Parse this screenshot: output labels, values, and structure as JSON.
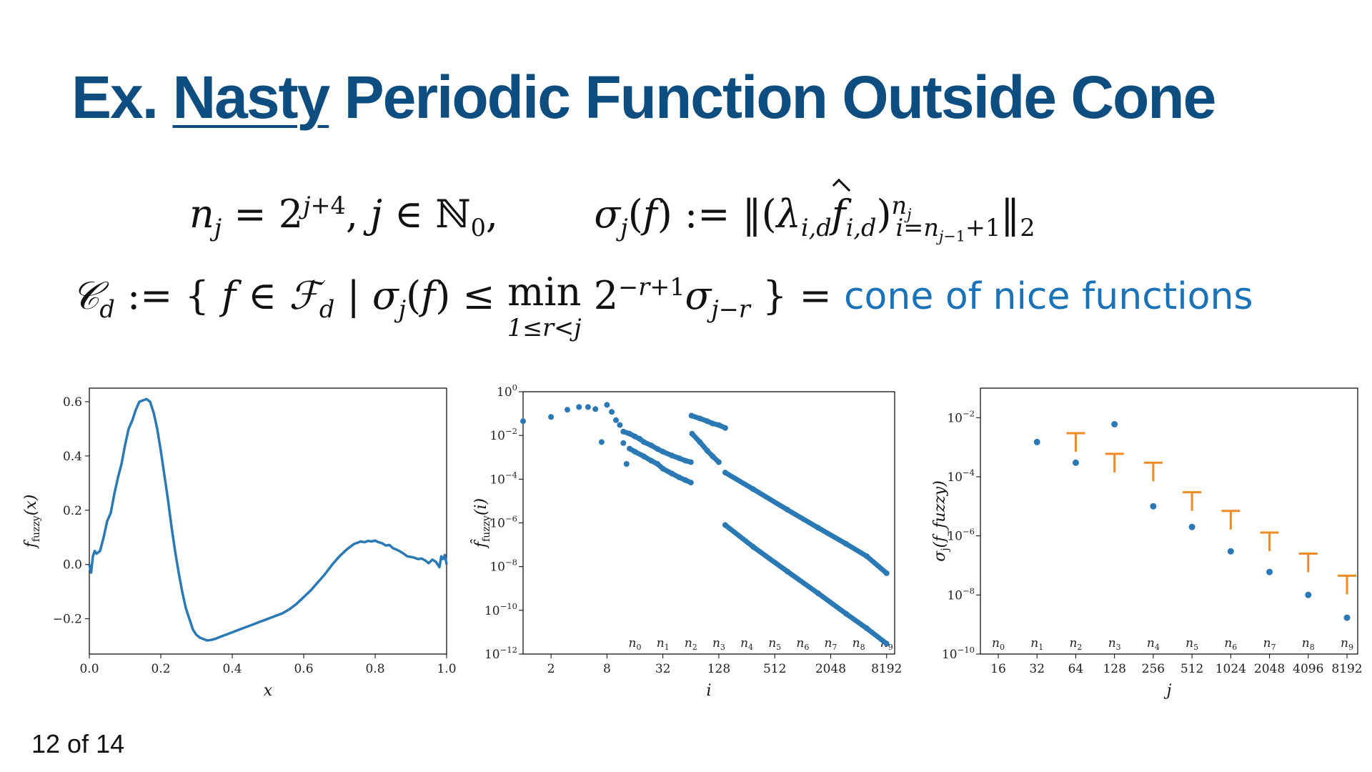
{
  "slide": {
    "title_prefix": "Ex.",
    "title_underlined": "Nasty",
    "title_suffix": "Periodic Function Outside Cone",
    "page_number": "12 of 14",
    "accent_color": "#0d4d80",
    "highlight_color": "#1a73b8",
    "series_color": "#2a78b4",
    "bound_color": "#f08a24"
  },
  "formulas": {
    "line1_left": "n_j = 2^{j+4}, j ∈ ℕ_0,",
    "line1_right": "σ_j(f) := ‖(λ_{i,d} f̂_{i,d})_{i=n_{j−1}+1}^{n_j}‖_2",
    "line2_left": "𝒞_d := { f ∈ ℱ_d | σ_j(f) ≤ min_{1≤r<j} 2^{−r+1} σ_{j−r} } =",
    "line2_highlight": "cone of nice functions"
  },
  "chart_data": [
    {
      "type": "line",
      "xlabel": "x",
      "ylabel": "f_fuzzy(x)",
      "xlim": [
        0.0,
        1.0
      ],
      "ylim": [
        -0.33,
        0.65
      ],
      "xticks": [
        0.0,
        0.2,
        0.4,
        0.6,
        0.8,
        1.0
      ],
      "xtick_labels": [
        "0.0",
        "0.2",
        "0.4",
        "0.6",
        "0.8",
        "1.0"
      ],
      "yticks": [
        -0.2,
        0.0,
        0.2,
        0.4,
        0.6
      ],
      "ytick_labels": [
        "−0.2",
        "0.0",
        "0.2",
        "0.4",
        "0.6"
      ],
      "series": [
        {
          "x": [
            0.0,
            0.005,
            0.01,
            0.015,
            0.02,
            0.03,
            0.04,
            0.05,
            0.06,
            0.07,
            0.08,
            0.09,
            0.1,
            0.11,
            0.12,
            0.13,
            0.14,
            0.15,
            0.16,
            0.17,
            0.18,
            0.19,
            0.2,
            0.21,
            0.22,
            0.23,
            0.24,
            0.25,
            0.26,
            0.27,
            0.28,
            0.29,
            0.3,
            0.31,
            0.32,
            0.33,
            0.34,
            0.35,
            0.36,
            0.37,
            0.38,
            0.39,
            0.4,
            0.42,
            0.44,
            0.46,
            0.48,
            0.5,
            0.52,
            0.54,
            0.56,
            0.58,
            0.6,
            0.62,
            0.64,
            0.66,
            0.68,
            0.7,
            0.72,
            0.74,
            0.75,
            0.76,
            0.77,
            0.78,
            0.79,
            0.8,
            0.81,
            0.82,
            0.83,
            0.84,
            0.85,
            0.86,
            0.87,
            0.88,
            0.89,
            0.9,
            0.91,
            0.92,
            0.93,
            0.94,
            0.95,
            0.96,
            0.97,
            0.98,
            0.985,
            0.99,
            0.995,
            1.0
          ],
          "y": [
            0.0,
            -0.03,
            0.03,
            0.05,
            0.04,
            0.05,
            0.1,
            0.16,
            0.19,
            0.26,
            0.32,
            0.37,
            0.44,
            0.5,
            0.53,
            0.57,
            0.6,
            0.605,
            0.61,
            0.6,
            0.56,
            0.5,
            0.42,
            0.33,
            0.24,
            0.14,
            0.05,
            -0.03,
            -0.1,
            -0.16,
            -0.2,
            -0.24,
            -0.26,
            -0.27,
            -0.275,
            -0.28,
            -0.278,
            -0.275,
            -0.27,
            -0.265,
            -0.26,
            -0.255,
            -0.25,
            -0.24,
            -0.23,
            -0.22,
            -0.21,
            -0.2,
            -0.19,
            -0.18,
            -0.165,
            -0.145,
            -0.12,
            -0.095,
            -0.065,
            -0.035,
            0.0,
            0.03,
            0.055,
            0.075,
            0.08,
            0.085,
            0.082,
            0.087,
            0.085,
            0.088,
            0.082,
            0.078,
            0.07,
            0.072,
            0.06,
            0.055,
            0.048,
            0.04,
            0.03,
            0.028,
            0.025,
            0.02,
            0.022,
            0.015,
            0.005,
            0.018,
            0.01,
            -0.01,
            0.03,
            0.02,
            0.035,
            0.0
          ]
        }
      ]
    },
    {
      "type": "scatter",
      "xlabel": "i",
      "ylabel": "f̂_fuzzy(i)",
      "xscale": "log",
      "yscale": "log",
      "xlim": [
        1,
        10000
      ],
      "ylim": [
        1e-12,
        1
      ],
      "xticks": [
        2,
        8,
        32,
        128,
        512,
        2048,
        8192
      ],
      "xtick_labels": [
        "2",
        "8",
        "32",
        "128",
        "512",
        "2048",
        "8192"
      ],
      "yticks": [
        1,
        0.01,
        0.0001,
        1e-06,
        1e-08,
        1e-10,
        1e-12
      ],
      "ytick_labels": [
        "10^0",
        "10^−2",
        "10^−4",
        "10^−6",
        "10^−8",
        "10^−10",
        "10^−12"
      ],
      "annotations": [
        "n0",
        "n1",
        "n2",
        "n3",
        "n4",
        "n5",
        "n6",
        "n7",
        "n8",
        "n9"
      ],
      "annotation_x": [
        16,
        32,
        64,
        128,
        256,
        512,
        1024,
        2048,
        4096,
        8192
      ],
      "points": [
        [
          1,
          0.045
        ],
        [
          2,
          0.07
        ],
        [
          3,
          0.15
        ],
        [
          4,
          0.2
        ],
        [
          5,
          0.2
        ],
        [
          6,
          0.16
        ],
        [
          7,
          0.005
        ],
        [
          8,
          0.25
        ],
        [
          9,
          0.12
        ],
        [
          10,
          0.05
        ],
        [
          11,
          0.03
        ],
        [
          12,
          0.015
        ],
        [
          14,
          0.012
        ],
        [
          16,
          0.009
        ],
        [
          18,
          0.007
        ],
        [
          20,
          0.005
        ],
        [
          24,
          0.0035
        ],
        [
          28,
          0.0024
        ],
        [
          32,
          0.0018
        ],
        [
          40,
          0.0012
        ],
        [
          48,
          0.0009
        ],
        [
          56,
          0.0007
        ],
        [
          64,
          0.0006
        ],
        [
          12,
          0.0045
        ],
        [
          13,
          0.0005
        ],
        [
          14,
          0.0025
        ],
        [
          16,
          0.0018
        ],
        [
          20,
          0.0011
        ],
        [
          24,
          0.0007
        ],
        [
          28,
          0.0005
        ],
        [
          32,
          0.0003
        ],
        [
          40,
          0.00018
        ],
        [
          48,
          0.00012
        ],
        [
          56,
          9e-05
        ],
        [
          64,
          7e-05
        ],
        [
          65,
          0.08
        ],
        [
          80,
          0.06
        ],
        [
          96,
          0.045
        ],
        [
          110,
          0.035
        ],
        [
          128,
          0.03
        ],
        [
          150,
          0.022
        ],
        [
          66,
          0.012
        ],
        [
          80,
          0.005
        ],
        [
          96,
          0.002
        ],
        [
          110,
          0.0011
        ],
        [
          128,
          0.0006
        ],
        [
          150,
          0.0002
        ],
        [
          300,
          3.5e-05
        ],
        [
          700,
          4e-06
        ],
        [
          1500,
          6e-07
        ],
        [
          3000,
          1.1e-07
        ],
        [
          5000,
          3e-08
        ],
        [
          8192,
          5e-09
        ],
        [
          150,
          8e-07
        ],
        [
          300,
          8e-08
        ],
        [
          700,
          6e-09
        ],
        [
          1500,
          6e-10
        ],
        [
          3000,
          7e-11
        ],
        [
          5000,
          1.5e-11
        ],
        [
          8192,
          3e-12
        ]
      ]
    },
    {
      "type": "scatter",
      "xlabel": "j",
      "ylabel": "σ_j(f_fuzzy)",
      "yscale": "log",
      "ylim": [
        1e-10,
        0.1
      ],
      "categories": [
        "16",
        "32",
        "64",
        "128",
        "256",
        "512",
        "1024",
        "2048",
        "4096",
        "8192"
      ],
      "annotations": [
        "n0",
        "n1",
        "n2",
        "n3",
        "n4",
        "n5",
        "n6",
        "n7",
        "n8",
        "n9"
      ],
      "yticks": [
        0.01,
        0.0001,
        1e-06,
        1e-08,
        1e-10
      ],
      "ytick_labels": [
        "10^−2",
        "10^−4",
        "10^−6",
        "10^−8",
        "10^−10"
      ],
      "sigma": [
        null,
        0.0015,
        0.0003,
        0.006,
        1e-05,
        2e-06,
        3e-07,
        6e-08,
        1e-08,
        1.7e-09
      ],
      "bounds": [
        null,
        null,
        0.003,
        0.0006,
        0.0003,
        3e-05,
        7e-06,
        1.3e-06,
        2.5e-07,
        4.5e-08
      ]
    }
  ]
}
